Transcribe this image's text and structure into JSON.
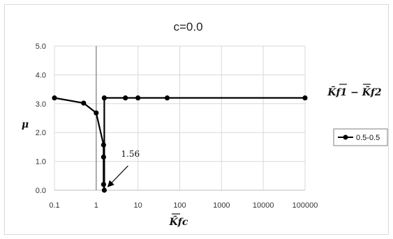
{
  "chart_data": {
    "type": "line",
    "title": "c=0.0",
    "xlabel": "K̄fc",
    "ylabel": "μ",
    "x_scale": "log",
    "xlim": [
      0.1,
      100000
    ],
    "ylim": [
      0,
      5
    ],
    "x_ticks": [
      "0.1",
      "1",
      "10",
      "100",
      "1000",
      "10000",
      "100000"
    ],
    "y_ticks": [
      "0.0",
      "1.0",
      "2.0",
      "3.0",
      "4.0",
      "5.0"
    ],
    "grid": true,
    "vertical_marker_x": 1,
    "legend_title": "K̄f1 − K̄f2",
    "legend_position": "right",
    "series": [
      {
        "name": "0.5-0.5",
        "color": "#000000",
        "marker": "circle",
        "points": [
          {
            "x": 0.1,
            "y": 3.2
          },
          {
            "x": 0.5,
            "y": 3.02
          },
          {
            "x": 1.0,
            "y": 2.68
          },
          {
            "x": 1.5,
            "y": 1.57
          },
          {
            "x": 1.5,
            "y": 1.15
          },
          {
            "x": 1.5,
            "y": 0.2
          },
          {
            "x": 1.56,
            "y": 0.0
          },
          {
            "x": 1.56,
            "y": 3.2
          },
          {
            "x": 5,
            "y": 3.2
          },
          {
            "x": 10,
            "y": 3.2
          },
          {
            "x": 50,
            "y": 3.2
          },
          {
            "x": 100000,
            "y": 3.2
          }
        ]
      }
    ],
    "annotation": {
      "text": "1.56",
      "x": 1.56,
      "y": 0.0
    }
  }
}
